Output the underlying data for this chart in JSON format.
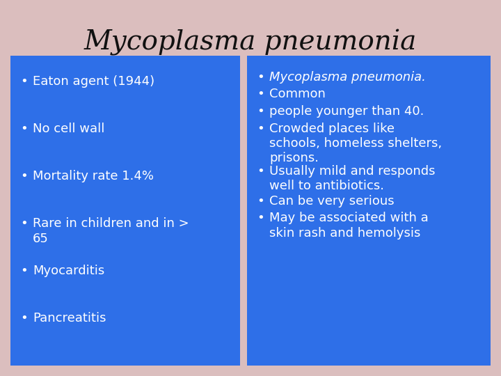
{
  "title": "Mycoplasma pneumonia",
  "background_color": "#DBBEBE",
  "box_color": "#2E6FE8",
  "text_color": "#FFFFFF",
  "title_color": "#111111",
  "left_bullets": [
    "Eaton agent (1944)",
    "No cell wall",
    "Mortality rate 1.4%",
    "Rare in children and in >\n65",
    "Myocarditis",
    "Pancreatitis"
  ],
  "right_bullets": [
    {
      "text": "Mycoplasma pneumonia.",
      "italic": true
    },
    {
      "text": "Common",
      "italic": false
    },
    {
      "text": "people younger than 40.",
      "italic": false
    },
    {
      "text": "Crowded places like\nschools, homeless shelters,\nprisons.",
      "italic": false
    },
    {
      "text": "Usually mild and responds\nwell to antibiotics.",
      "italic": false
    },
    {
      "text": "Can be very serious",
      "italic": false
    },
    {
      "text": "May be associated with a\nskin rash and hemolysis",
      "italic": false
    }
  ],
  "title_fontsize": 28,
  "bullet_fontsize": 13,
  "fig_width": 7.2,
  "fig_height": 5.4,
  "dpi": 100
}
